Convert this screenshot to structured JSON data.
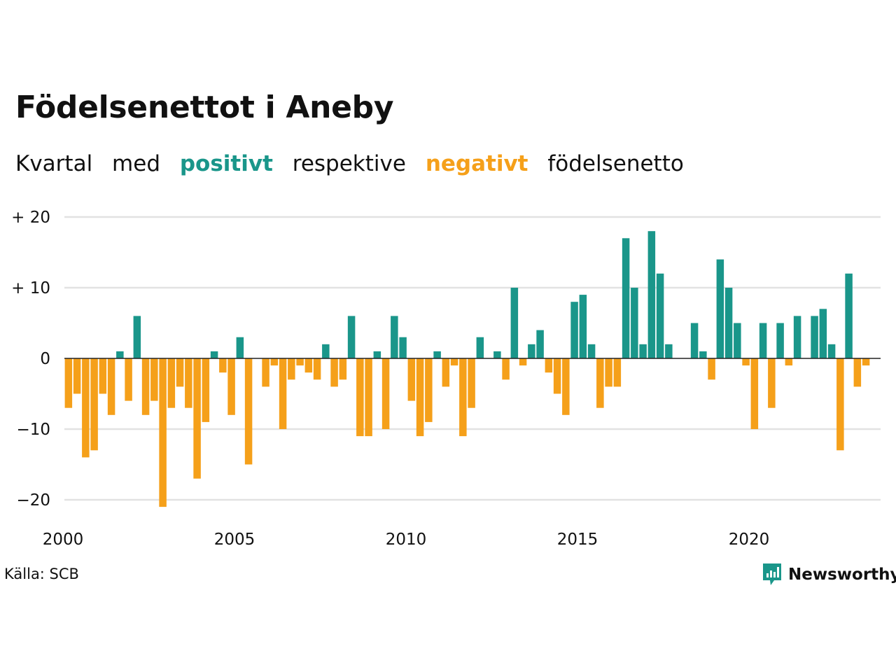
{
  "title": "Födelsenettot i Aneby",
  "subtitle": {
    "w1": "Kvartal",
    "w2": "med",
    "positive": "positivt",
    "w3": "respektive",
    "negative": "negativt",
    "w4": "födelsenetto"
  },
  "source": "Källa: SCB",
  "logo_text": "Newsworthy",
  "colors": {
    "positive": "#1a968a",
    "negative": "#f5a01a",
    "grid": "#e2e2e2",
    "text": "#111111"
  },
  "chart_data": {
    "type": "bar",
    "x_start": "2000 Q1",
    "values": [
      -7,
      -5,
      -14,
      -13,
      -5,
      -8,
      1,
      -6,
      6,
      -8,
      -6,
      -21,
      -7,
      -4,
      -7,
      -17,
      -9,
      1,
      -2,
      -8,
      3,
      -15,
      0,
      -4,
      -1,
      -10,
      -3,
      -1,
      -2,
      -3,
      2,
      -4,
      -3,
      6,
      -11,
      -11,
      1,
      -10,
      6,
      3,
      -6,
      -11,
      -9,
      1,
      -4,
      -1,
      -11,
      -7,
      3,
      0,
      1,
      -3,
      10,
      -1,
      2,
      4,
      -2,
      -5,
      -8,
      8,
      9,
      2,
      -7,
      -4,
      -4,
      17,
      10,
      2,
      18,
      12,
      2,
      0,
      0,
      5,
      1,
      -3,
      14,
      10,
      5,
      -1,
      -10,
      5,
      -7,
      5,
      -1,
      6,
      0,
      6,
      7,
      2,
      -13,
      12,
      -4,
      -1
    ],
    "yticks": [
      20,
      10,
      0,
      -10,
      -20
    ],
    "ytick_labels": [
      "+ 20",
      "+ 10",
      "0",
      "−10",
      "−20"
    ],
    "xticks": [
      "2000",
      "2005",
      "2010",
      "2015",
      "2020"
    ],
    "ylim": [
      -22,
      20
    ]
  }
}
